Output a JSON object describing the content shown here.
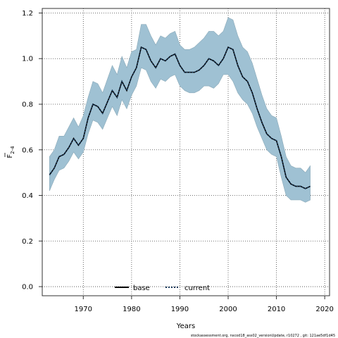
{
  "chart_data": {
    "type": "area",
    "title": "",
    "xlabel": "Years",
    "ylabel_main": "F",
    "ylabel_sub": "2-4",
    "xlim": [
      1961.5,
      2021
    ],
    "ylim": [
      -0.04,
      1.22
    ],
    "x_ticks": [
      1970,
      1980,
      1990,
      2000,
      2010,
      2020
    ],
    "y_ticks": [
      0.0,
      0.2,
      0.4,
      0.6,
      0.8,
      1.0,
      1.2
    ],
    "y_tick_labels": [
      "0.0",
      "0.2",
      "0.4",
      "0.6",
      "0.8",
      "1.0",
      "1.2"
    ],
    "grid": true,
    "legend_position": "bottom-left",
    "x": [
      1963,
      1964,
      1965,
      1966,
      1967,
      1968,
      1969,
      1970,
      1971,
      1972,
      1973,
      1974,
      1975,
      1976,
      1977,
      1978,
      1979,
      1980,
      1981,
      1982,
      1983,
      1984,
      1985,
      1986,
      1987,
      1988,
      1989,
      1990,
      1991,
      1992,
      1993,
      1994,
      1995,
      1996,
      1997,
      1998,
      1999,
      2000,
      2001,
      2002,
      2003,
      2004,
      2005,
      2006,
      2007,
      2008,
      2009,
      2010,
      2011,
      2012,
      2013,
      2014,
      2015,
      2016,
      2017
    ],
    "series": [
      {
        "name": "base",
        "color": "#000000",
        "values": [
          0.49,
          0.52,
          0.57,
          0.58,
          0.61,
          0.65,
          0.62,
          0.65,
          0.74,
          0.8,
          0.79,
          0.76,
          0.81,
          0.86,
          0.83,
          0.9,
          0.86,
          0.92,
          0.96,
          1.05,
          1.04,
          0.99,
          0.96,
          1.0,
          0.99,
          1.01,
          1.02,
          0.97,
          0.94,
          0.94,
          0.94,
          0.95,
          0.97,
          1.0,
          0.99,
          0.97,
          1.0,
          1.05,
          1.04,
          0.97,
          0.92,
          0.9,
          0.85,
          0.78,
          0.72,
          0.67,
          0.65,
          0.64,
          0.57,
          0.48,
          0.45,
          0.44,
          0.44,
          0.43,
          0.44
        ]
      },
      {
        "name": "current",
        "color": "#1a3a5c",
        "values": [
          0.49,
          0.52,
          0.57,
          0.58,
          0.61,
          0.65,
          0.62,
          0.65,
          0.74,
          0.8,
          0.79,
          0.76,
          0.81,
          0.86,
          0.83,
          0.9,
          0.86,
          0.92,
          0.96,
          1.05,
          1.04,
          0.99,
          0.96,
          1.0,
          0.99,
          1.01,
          1.02,
          0.97,
          0.94,
          0.94,
          0.94,
          0.95,
          0.97,
          1.0,
          0.99,
          0.97,
          1.0,
          1.05,
          1.04,
          0.97,
          0.92,
          0.9,
          0.85,
          0.78,
          0.72,
          0.67,
          0.65,
          0.64,
          0.57,
          0.48,
          0.45,
          0.44,
          0.44,
          0.43,
          0.44
        ]
      }
    ],
    "band": {
      "color": "#9fc1d3",
      "upper": [
        0.57,
        0.6,
        0.66,
        0.66,
        0.7,
        0.74,
        0.7,
        0.75,
        0.83,
        0.9,
        0.89,
        0.85,
        0.91,
        0.97,
        0.93,
        1.01,
        0.96,
        1.03,
        1.04,
        1.15,
        1.15,
        1.1,
        1.06,
        1.1,
        1.09,
        1.11,
        1.12,
        1.06,
        1.04,
        1.04,
        1.05,
        1.07,
        1.09,
        1.12,
        1.12,
        1.1,
        1.12,
        1.18,
        1.17,
        1.1,
        1.05,
        1.03,
        0.98,
        0.91,
        0.84,
        0.78,
        0.75,
        0.74,
        0.66,
        0.57,
        0.53,
        0.52,
        0.52,
        0.5,
        0.53
      ],
      "lower": [
        0.42,
        0.47,
        0.51,
        0.52,
        0.55,
        0.59,
        0.56,
        0.59,
        0.67,
        0.73,
        0.72,
        0.69,
        0.74,
        0.79,
        0.75,
        0.82,
        0.78,
        0.84,
        0.88,
        0.96,
        0.95,
        0.9,
        0.87,
        0.91,
        0.9,
        0.92,
        0.93,
        0.88,
        0.86,
        0.85,
        0.85,
        0.86,
        0.88,
        0.88,
        0.87,
        0.89,
        0.93,
        0.93,
        0.9,
        0.85,
        0.82,
        0.8,
        0.76,
        0.7,
        0.65,
        0.6,
        0.58,
        0.57,
        0.48,
        0.4,
        0.38,
        0.38,
        0.38,
        0.37,
        0.38
      ]
    },
    "footer_note": "stockassessment.org, nscod18_ass02_versionUpdate, r10272 , git: 121ae5df1d45"
  }
}
